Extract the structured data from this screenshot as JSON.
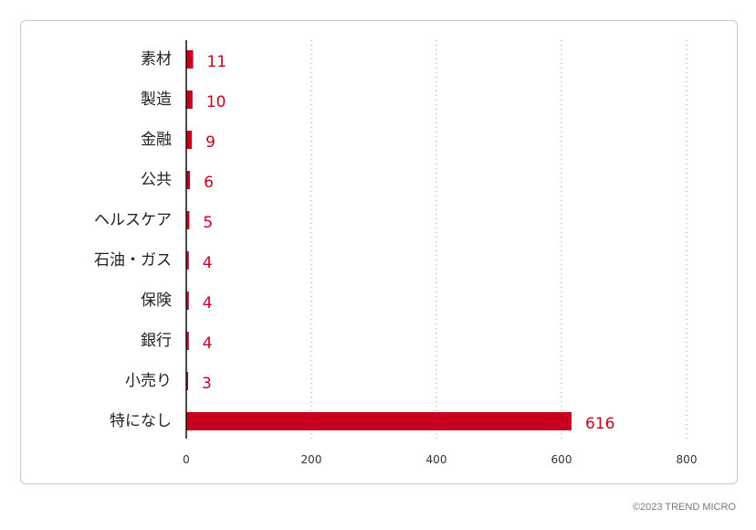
{
  "chart_data": {
    "type": "bar",
    "orientation": "horizontal",
    "categories": [
      "素材",
      "製造",
      "金融",
      "公共",
      "ヘルスケア",
      "石油・ガス",
      "保険",
      "銀行",
      "小売り",
      "特になし"
    ],
    "values": [
      11,
      10,
      9,
      6,
      5,
      4,
      4,
      4,
      3,
      616
    ],
    "value_labels": [
      "11",
      "10",
      "9",
      "6",
      "5",
      "4",
      "4",
      "4",
      "3",
      "616"
    ],
    "xlim": [
      0,
      800
    ],
    "xticks": [
      0,
      200,
      400,
      600,
      800
    ],
    "xtick_labels": [
      "0",
      "200",
      "400",
      "600",
      "800"
    ],
    "grid": "vertical dotted",
    "bar_color": "#c8001e",
    "label_color": "#c8001e",
    "title": "",
    "xlabel": "",
    "ylabel": ""
  },
  "footer": {
    "copyright": "©2023 TREND MICRO"
  }
}
